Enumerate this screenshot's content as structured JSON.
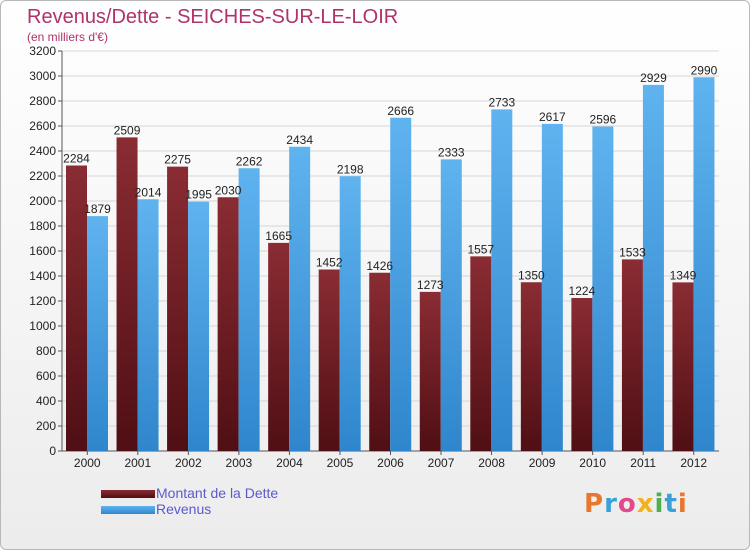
{
  "header": {
    "title": "Revenus/Dette - SEICHES-SUR-LE-LOIR",
    "subtitle": "(en milliers d'€)"
  },
  "colors": {
    "dette": "#7a1f26",
    "revenus": "#4aa3e6",
    "title": "#b0326a",
    "legend_text": "#5a5acd"
  },
  "logo": {
    "text": "Proxiti"
  },
  "chart_data": {
    "type": "bar",
    "title": "Revenus/Dette - SEICHES-SUR-LE-LOIR",
    "subtitle": "(en milliers d'€)",
    "xlabel": "",
    "ylabel": "",
    "ylim": [
      0,
      3200
    ],
    "ytick_step": 200,
    "grid": true,
    "legend_placement": "bottom-left",
    "categories": [
      "2000",
      "2001",
      "2002",
      "2003",
      "2004",
      "2005",
      "2006",
      "2007",
      "2008",
      "2009",
      "2010",
      "2011",
      "2012"
    ],
    "series": [
      {
        "name": "Montant de la Dette",
        "values": [
          2284,
          2509,
          2275,
          2030,
          1665,
          1452,
          1426,
          1273,
          1557,
          1350,
          1224,
          1533,
          1349
        ],
        "labels": [
          "2284",
          "2509",
          "2275",
          "2030",
          "1665",
          "1452",
          "1426",
          "1273",
          "1557",
          "1350",
          "1224",
          "1533",
          "1349"
        ]
      },
      {
        "name": "Revenus",
        "values": [
          1879,
          2014,
          1995,
          2262,
          2434,
          2198,
          2666,
          2333,
          2733,
          2617,
          2596,
          2929,
          2990
        ],
        "labels": [
          "1879",
          "2014",
          "1995",
          "2262",
          "2434",
          "2198",
          "2666",
          "2333",
          "2733",
          "2617",
          "2596",
          "2929",
          "2990"
        ]
      }
    ]
  }
}
